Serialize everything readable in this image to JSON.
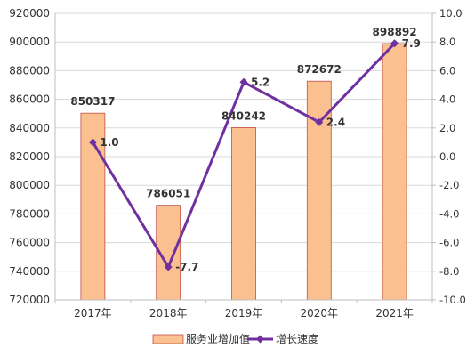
{
  "chart_data": {
    "type": "bar+line",
    "categories": [
      "2017年",
      "2018年",
      "2019年",
      "2020年",
      "2021年"
    ],
    "series": [
      {
        "name": "服务业增加值",
        "type": "bar",
        "axis": "left",
        "color": "#FAC090",
        "border_color": "#C0504D",
        "values": [
          850317,
          786051,
          840242,
          872672,
          898892
        ],
        "labels": [
          "850317",
          "786051",
          "840242",
          "872672",
          "898892"
        ]
      },
      {
        "name": "增长速度",
        "type": "line",
        "axis": "right",
        "color": "#7030A0",
        "marker": "diamond",
        "values": [
          1.0,
          -7.7,
          5.2,
          2.4,
          7.9
        ],
        "labels": [
          "1.0",
          "-7.7",
          "5.2",
          "2.4",
          "7.9"
        ]
      }
    ],
    "y_left": {
      "min": 720000,
      "max": 920000,
      "step": 20000,
      "ticks": [
        "720000",
        "740000",
        "760000",
        "780000",
        "800000",
        "820000",
        "840000",
        "860000",
        "880000",
        "900000",
        "920000"
      ]
    },
    "y_right": {
      "min": -10,
      "max": 10,
      "step": 2,
      "ticks": [
        "-10.0",
        "-8.0",
        "-6.0",
        "-4.0",
        "-2.0",
        "0.0",
        "2.0",
        "4.0",
        "6.0",
        "8.0",
        "10.0"
      ]
    },
    "grid": true,
    "legend_position": "bottom"
  }
}
